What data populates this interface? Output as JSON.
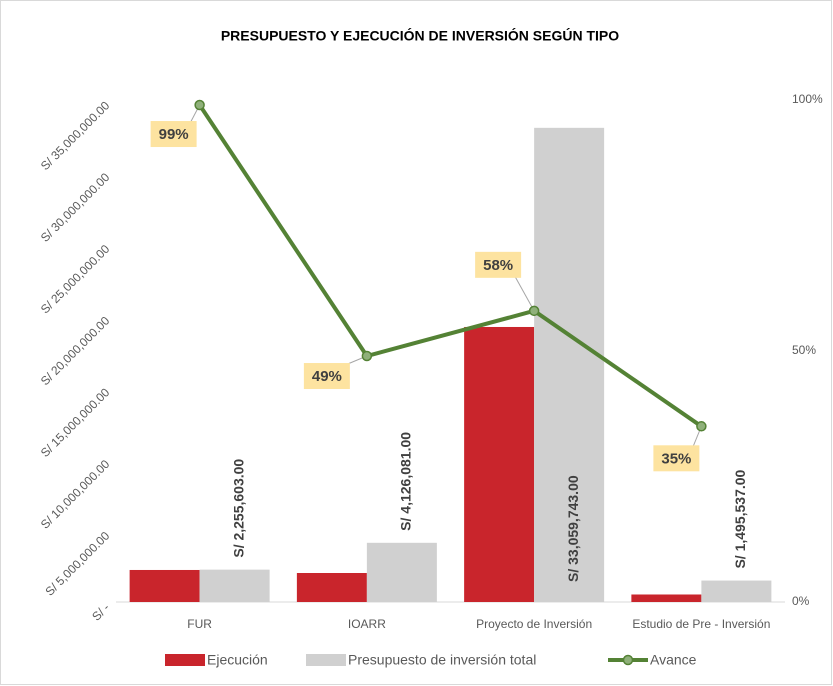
{
  "chart_data": {
    "type": "bar_line",
    "title": "PRESUPUESTO Y EJECUCIÓN DE INVERSIÓN SEGÚN TIPO",
    "categories": [
      "FUR",
      "IOARR",
      "Proyecto de Inversión",
      "Estudio de Pre - Inversión"
    ],
    "series": [
      {
        "name": "Ejecución",
        "color": "#c9252c",
        "values": [
          2233047,
          2021780,
          19174651,
          523438
        ]
      },
      {
        "name": "Presupuesto de inversión total",
        "color": "#d0d0d0",
        "values": [
          2255603,
          4126081,
          33059743,
          1495537
        ],
        "value_labels": [
          "S/ 2,255,603.00",
          "S/ 4,126,081.00",
          "S/ 33,059,743.00",
          "S/ 1,495,537.00"
        ]
      },
      {
        "name": "Avance",
        "color": "#548235",
        "axis": "y2",
        "values": [
          99,
          49,
          58,
          35
        ],
        "value_labels": [
          "99%",
          "49%",
          "58%",
          "35%"
        ]
      }
    ],
    "ylim": [
      0,
      35000000
    ],
    "yticks": [
      {
        "value": 0,
        "label": "S/ -"
      },
      {
        "value": 5000000,
        "label": "S/ 5,000,000.00"
      },
      {
        "value": 10000000,
        "label": "S/ 10,000,000.00"
      },
      {
        "value": 15000000,
        "label": "S/ 15,000,000.00"
      },
      {
        "value": 20000000,
        "label": "S/ 20,000,000.00"
      },
      {
        "value": 25000000,
        "label": "S/ 25,000,000.00"
      },
      {
        "value": 30000000,
        "label": "S/ 30,000,000.00"
      },
      {
        "value": 35000000,
        "label": "S/ 35,000,000.00"
      }
    ],
    "y2lim": [
      0,
      100
    ],
    "y2ticks": [
      {
        "value": 0,
        "label": "0%"
      },
      {
        "value": 50,
        "label": "50%"
      },
      {
        "value": 100,
        "label": "100%"
      }
    ],
    "grid": false,
    "legend": "bottom"
  }
}
